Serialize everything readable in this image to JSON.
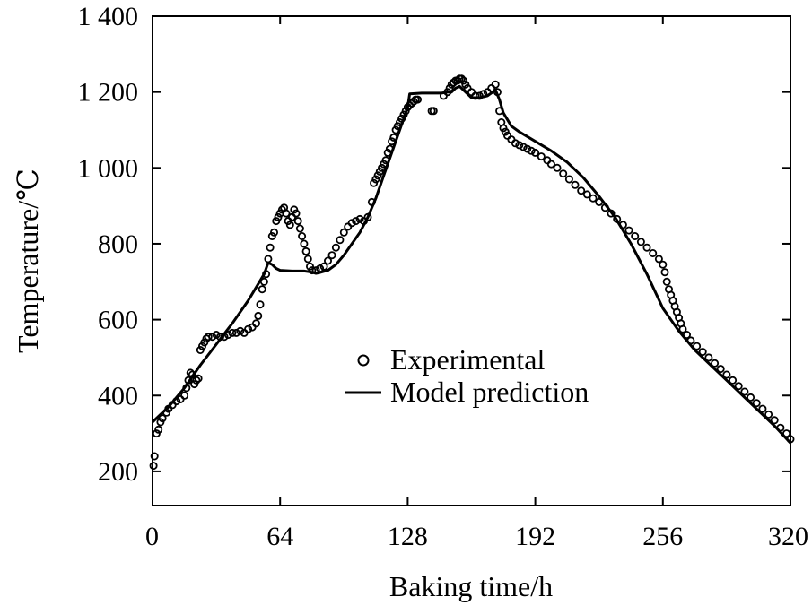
{
  "chart_data": {
    "type": "line",
    "xlabel": "Baking time/h",
    "ylabel": "Temperature/℃",
    "xlim": [
      0,
      320
    ],
    "ylim": [
      110,
      1400
    ],
    "x_ticks": [
      0,
      64,
      128,
      192,
      256,
      320
    ],
    "x_tick_labels": [
      "0",
      "64",
      "128",
      "192",
      "256",
      "320"
    ],
    "y_ticks": [
      200,
      400,
      600,
      800,
      1000,
      1200,
      1400
    ],
    "y_tick_labels": [
      "200",
      "400",
      "600",
      "800",
      "1 000",
      "1 200",
      "1 400"
    ],
    "grid": false,
    "legend_position": "center",
    "series": [
      {
        "name": "Experimental",
        "marker": "open-circle",
        "color": "#000000",
        "points": [
          [
            0.5,
            215
          ],
          [
            1,
            240
          ],
          [
            2,
            300
          ],
          [
            3,
            310
          ],
          [
            4,
            330
          ],
          [
            5,
            340
          ],
          [
            7,
            355
          ],
          [
            8,
            365
          ],
          [
            10,
            375
          ],
          [
            12,
            385
          ],
          [
            14,
            390
          ],
          [
            16,
            400
          ],
          [
            17,
            420
          ],
          [
            18,
            440
          ],
          [
            19,
            460
          ],
          [
            20,
            455
          ],
          [
            21,
            430
          ],
          [
            22,
            440
          ],
          [
            23,
            445
          ],
          [
            24,
            520
          ],
          [
            25,
            530
          ],
          [
            26,
            540
          ],
          [
            27,
            550
          ],
          [
            28,
            555
          ],
          [
            30,
            555
          ],
          [
            32,
            560
          ],
          [
            34,
            555
          ],
          [
            36,
            555
          ],
          [
            38,
            560
          ],
          [
            40,
            565
          ],
          [
            42,
            565
          ],
          [
            44,
            570
          ],
          [
            46,
            565
          ],
          [
            48,
            575
          ],
          [
            50,
            580
          ],
          [
            52,
            590
          ],
          [
            53,
            610
          ],
          [
            54,
            640
          ],
          [
            55,
            680
          ],
          [
            56,
            700
          ],
          [
            57,
            720
          ],
          [
            58,
            760
          ],
          [
            59,
            790
          ],
          [
            60,
            820
          ],
          [
            61,
            830
          ],
          [
            62,
            860
          ],
          [
            63,
            870
          ],
          [
            64,
            880
          ],
          [
            65,
            890
          ],
          [
            66,
            895
          ],
          [
            67,
            880
          ],
          [
            68,
            860
          ],
          [
            69,
            850
          ],
          [
            70,
            870
          ],
          [
            71,
            890
          ],
          [
            72,
            880
          ],
          [
            73,
            860
          ],
          [
            74,
            840
          ],
          [
            75,
            820
          ],
          [
            76,
            800
          ],
          [
            77,
            780
          ],
          [
            78,
            760
          ],
          [
            79,
            740
          ],
          [
            80,
            730
          ],
          [
            82,
            730
          ],
          [
            84,
            735
          ],
          [
            86,
            740
          ],
          [
            88,
            755
          ],
          [
            90,
            770
          ],
          [
            92,
            790
          ],
          [
            94,
            810
          ],
          [
            96,
            830
          ],
          [
            98,
            845
          ],
          [
            100,
            855
          ],
          [
            102,
            860
          ],
          [
            104,
            865
          ],
          [
            106,
            860
          ],
          [
            108,
            870
          ],
          [
            110,
            910
          ],
          [
            111,
            960
          ],
          [
            112,
            970
          ],
          [
            113,
            980
          ],
          [
            114,
            990
          ],
          [
            115,
            1000
          ],
          [
            116,
            1010
          ],
          [
            117,
            1020
          ],
          [
            118,
            1040
          ],
          [
            119,
            1050
          ],
          [
            120,
            1070
          ],
          [
            121,
            1080
          ],
          [
            122,
            1100
          ],
          [
            123,
            1110
          ],
          [
            124,
            1120
          ],
          [
            125,
            1130
          ],
          [
            126,
            1140
          ],
          [
            127,
            1150
          ],
          [
            128,
            1160
          ],
          [
            129,
            1165
          ],
          [
            130,
            1170
          ],
          [
            131,
            1175
          ],
          [
            132,
            1180
          ],
          [
            133,
            1180
          ],
          [
            140,
            1150
          ],
          [
            141,
            1150
          ],
          [
            146,
            1190
          ],
          [
            148,
            1200
          ],
          [
            149,
            1210
          ],
          [
            150,
            1220
          ],
          [
            151,
            1225
          ],
          [
            152,
            1230
          ],
          [
            153,
            1230
          ],
          [
            154,
            1235
          ],
          [
            155,
            1235
          ],
          [
            156,
            1230
          ],
          [
            157,
            1220
          ],
          [
            158,
            1210
          ],
          [
            160,
            1200
          ],
          [
            162,
            1190
          ],
          [
            164,
            1190
          ],
          [
            166,
            1195
          ],
          [
            168,
            1200
          ],
          [
            170,
            1210
          ],
          [
            172,
            1220
          ],
          [
            173,
            1200
          ],
          [
            174,
            1150
          ],
          [
            175,
            1120
          ],
          [
            176,
            1105
          ],
          [
            177,
            1095
          ],
          [
            178,
            1085
          ],
          [
            180,
            1075
          ],
          [
            182,
            1065
          ],
          [
            184,
            1060
          ],
          [
            186,
            1055
          ],
          [
            188,
            1050
          ],
          [
            190,
            1045
          ],
          [
            192,
            1040
          ],
          [
            195,
            1030
          ],
          [
            198,
            1020
          ],
          [
            200,
            1010
          ],
          [
            203,
            1000
          ],
          [
            206,
            985
          ],
          [
            209,
            970
          ],
          [
            212,
            955
          ],
          [
            215,
            940
          ],
          [
            218,
            930
          ],
          [
            221,
            920
          ],
          [
            224,
            910
          ],
          [
            227,
            895
          ],
          [
            230,
            880
          ],
          [
            233,
            865
          ],
          [
            236,
            850
          ],
          [
            239,
            835
          ],
          [
            242,
            820
          ],
          [
            245,
            805
          ],
          [
            248,
            790
          ],
          [
            251,
            775
          ],
          [
            254,
            760
          ],
          [
            256,
            745
          ],
          [
            257,
            725
          ],
          [
            258,
            700
          ],
          [
            259,
            680
          ],
          [
            260,
            665
          ],
          [
            261,
            650
          ],
          [
            262,
            635
          ],
          [
            263,
            620
          ],
          [
            264,
            605
          ],
          [
            265,
            590
          ],
          [
            266,
            575
          ],
          [
            268,
            560
          ],
          [
            270,
            545
          ],
          [
            273,
            530
          ],
          [
            276,
            515
          ],
          [
            279,
            500
          ],
          [
            282,
            485
          ],
          [
            285,
            470
          ],
          [
            288,
            455
          ],
          [
            291,
            440
          ],
          [
            294,
            425
          ],
          [
            297,
            410
          ],
          [
            300,
            395
          ],
          [
            303,
            380
          ],
          [
            306,
            365
          ],
          [
            309,
            350
          ],
          [
            312,
            335
          ],
          [
            315,
            315
          ],
          [
            318,
            300
          ],
          [
            320,
            285
          ]
        ]
      },
      {
        "name": "Model prediction",
        "marker": "line",
        "color": "#000000",
        "points": [
          [
            0,
            330
          ],
          [
            8,
            370
          ],
          [
            16,
            420
          ],
          [
            24,
            480
          ],
          [
            32,
            535
          ],
          [
            40,
            590
          ],
          [
            48,
            650
          ],
          [
            56,
            720
          ],
          [
            58,
            750
          ],
          [
            60,
            745
          ],
          [
            62,
            735
          ],
          [
            64,
            730
          ],
          [
            70,
            728
          ],
          [
            76,
            728
          ],
          [
            80,
            725
          ],
          [
            82,
            722
          ],
          [
            84,
            724
          ],
          [
            88,
            730
          ],
          [
            92,
            745
          ],
          [
            96,
            770
          ],
          [
            100,
            800
          ],
          [
            104,
            830
          ],
          [
            108,
            870
          ],
          [
            112,
            920
          ],
          [
            116,
            980
          ],
          [
            120,
            1040
          ],
          [
            124,
            1100
          ],
          [
            128,
            1160
          ],
          [
            129,
            1195
          ],
          [
            135,
            1197
          ],
          [
            140,
            1197
          ],
          [
            145,
            1197
          ],
          [
            148,
            1200
          ],
          [
            150,
            1200
          ],
          [
            152,
            1210
          ],
          [
            154,
            1215
          ],
          [
            156,
            1205
          ],
          [
            158,
            1195
          ],
          [
            160,
            1185
          ],
          [
            164,
            1185
          ],
          [
            168,
            1190
          ],
          [
            172,
            1205
          ],
          [
            174,
            1180
          ],
          [
            176,
            1145
          ],
          [
            180,
            1110
          ],
          [
            184,
            1095
          ],
          [
            192,
            1070
          ],
          [
            200,
            1045
          ],
          [
            208,
            1015
          ],
          [
            216,
            975
          ],
          [
            224,
            925
          ],
          [
            232,
            870
          ],
          [
            240,
            800
          ],
          [
            248,
            720
          ],
          [
            256,
            630
          ],
          [
            264,
            570
          ],
          [
            272,
            520
          ],
          [
            280,
            480
          ],
          [
            288,
            440
          ],
          [
            296,
            400
          ],
          [
            304,
            360
          ],
          [
            312,
            320
          ],
          [
            320,
            275
          ]
        ]
      }
    ]
  }
}
